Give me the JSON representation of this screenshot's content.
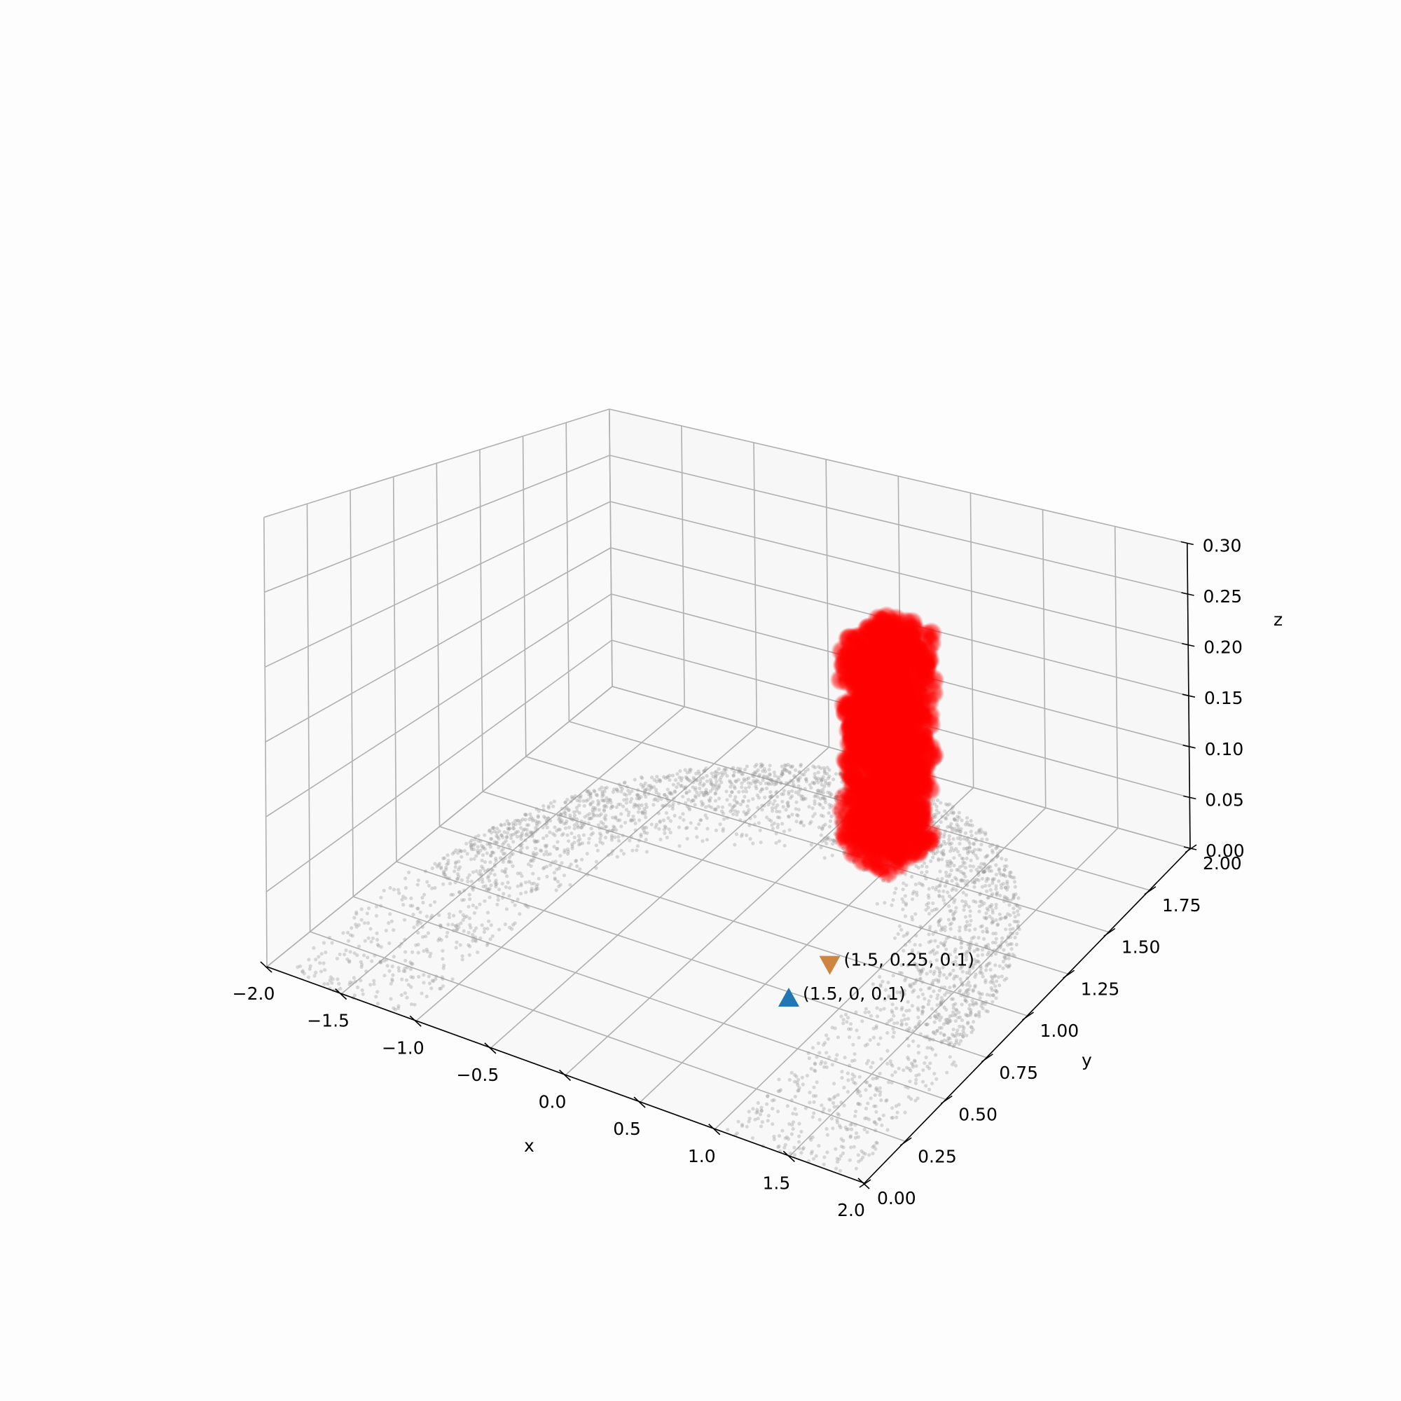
{
  "chart_data": {
    "type": "scatter",
    "projection": "3d",
    "grid": true,
    "x_axis": {
      "label": "x",
      "range": [
        -2.0,
        2.0
      ],
      "ticks": [
        -2.0,
        -1.5,
        -1.0,
        -0.5,
        0.0,
        0.5,
        1.0,
        1.5,
        2.0
      ],
      "tick_labels": [
        "−2.0",
        "−1.5",
        "−1.0",
        "−0.5",
        "0.0",
        "0.5",
        "1.0",
        "1.5",
        "2.0"
      ]
    },
    "y_axis": {
      "label": "y",
      "range": [
        0.0,
        2.0
      ],
      "ticks": [
        0.0,
        0.25,
        0.5,
        0.75,
        1.0,
        1.25,
        1.5,
        1.75,
        2.0
      ],
      "tick_labels": [
        "0.00",
        "0.25",
        "0.50",
        "0.75",
        "1.00",
        "1.25",
        "1.50",
        "1.75",
        "2.00"
      ]
    },
    "z_axis": {
      "label": "z",
      "range": [
        0.0,
        0.3
      ],
      "ticks": [
        0.0,
        0.05,
        0.1,
        0.15,
        0.2,
        0.25,
        0.3
      ],
      "tick_labels": [
        "0.00",
        "0.05",
        "0.10",
        "0.15",
        "0.20",
        "0.25",
        "0.30"
      ]
    },
    "series": [
      {
        "kind": "point-cloud",
        "shape": "half-annulus",
        "color": "#999999",
        "alpha": 0.15,
        "x_range": [
          -2.0,
          2.0
        ],
        "y_range": [
          0.0,
          2.0
        ],
        "z": 0.0
      },
      {
        "kind": "point-cloud",
        "shape": "vertical-slab",
        "color": "#ff0000",
        "x_range": [
          0.2,
          0.6
        ],
        "y_range": [
          1.45,
          1.7
        ],
        "z_range": [
          0.0,
          0.2
        ]
      },
      {
        "kind": "marker",
        "marker": "triangle-up",
        "color": "#1f77b4",
        "point": [
          1.5,
          0.0,
          0.1
        ],
        "annotation": "(1.5, 0, 0.1)"
      },
      {
        "kind": "marker",
        "marker": "triangle-down",
        "color": "#cd853f",
        "point": [
          1.5,
          0.25,
          0.1
        ],
        "annotation": "(1.5, 0.25, 0.1)"
      }
    ]
  }
}
